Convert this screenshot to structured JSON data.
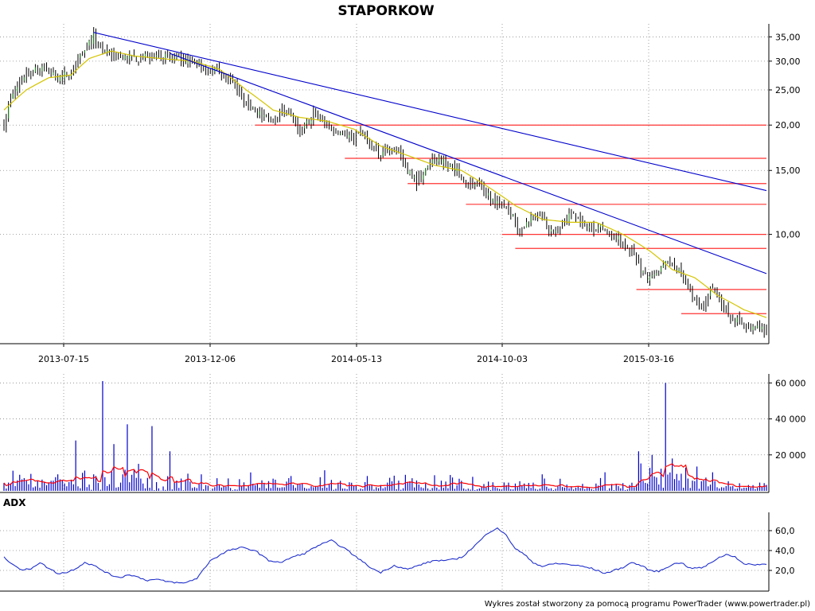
{
  "chart_data": {
    "type": "candlestick",
    "title": "STAPORKOW",
    "footer": "Wykres został stworzony za pomocą programu PowerTrader (www.powertrader.pl)",
    "colors": {
      "candle": "#000000",
      "ma": "#d4c400",
      "trend": "#0000cc",
      "support": "#ff3333",
      "volume": "#0000cc",
      "volume_ma": "#ff0000",
      "adx": "#2030cc",
      "grid": "#888888"
    },
    "x_axis": {
      "labels": [
        "2013-07-15",
        "2013-12-06",
        "2014-05-13",
        "2014-10-03",
        "2015-03-16"
      ]
    },
    "price": {
      "scale": "log",
      "ticks": [
        {
          "value": 35,
          "label": "35,00"
        },
        {
          "value": 30,
          "label": "30,00"
        },
        {
          "value": 25,
          "label": "25,00"
        },
        {
          "value": 20,
          "label": "20,00"
        },
        {
          "value": 15,
          "label": "15,00"
        },
        {
          "value": 10,
          "label": "10,00"
        }
      ],
      "close_keypoints": [
        [
          0,
          20
        ],
        [
          3,
          23.5
        ],
        [
          10,
          28
        ],
        [
          18,
          28.5
        ],
        [
          24,
          27
        ],
        [
          30,
          28
        ],
        [
          36,
          32
        ],
        [
          40,
          35
        ],
        [
          44,
          31.5
        ],
        [
          50,
          31
        ],
        [
          56,
          30.5
        ],
        [
          62,
          30.5
        ],
        [
          68,
          31.5
        ],
        [
          72,
          31
        ],
        [
          80,
          30
        ],
        [
          88,
          29.5
        ],
        [
          94,
          28.5
        ],
        [
          100,
          27
        ],
        [
          106,
          24
        ],
        [
          112,
          22
        ],
        [
          118,
          20.5
        ],
        [
          124,
          22
        ],
        [
          128,
          21
        ],
        [
          132,
          19
        ],
        [
          138,
          21.5
        ],
        [
          144,
          20
        ],
        [
          150,
          19
        ],
        [
          156,
          18.5
        ],
        [
          160,
          19
        ],
        [
          164,
          17.5
        ],
        [
          168,
          16.5
        ],
        [
          172,
          17.5
        ],
        [
          176,
          17
        ],
        [
          180,
          15
        ],
        [
          184,
          14
        ],
        [
          188,
          15
        ],
        [
          192,
          16
        ],
        [
          196,
          16
        ],
        [
          200,
          15.5
        ],
        [
          206,
          14
        ],
        [
          212,
          13.5
        ],
        [
          218,
          12.5
        ],
        [
          224,
          12
        ],
        [
          228,
          11
        ],
        [
          230,
          10
        ],
        [
          234,
          11
        ],
        [
          238,
          11.5
        ],
        [
          242,
          10.5
        ],
        [
          246,
          10
        ],
        [
          250,
          11
        ],
        [
          254,
          11.5
        ],
        [
          258,
          10.5
        ],
        [
          262,
          10.5
        ],
        [
          266,
          10.5
        ],
        [
          270,
          10
        ],
        [
          276,
          9.5
        ],
        [
          280,
          9
        ],
        [
          284,
          8
        ],
        [
          288,
          7.5
        ],
        [
          292,
          7.8
        ],
        [
          296,
          8.5
        ],
        [
          300,
          8
        ],
        [
          304,
          7.5
        ],
        [
          308,
          6.5
        ],
        [
          312,
          6.2
        ],
        [
          316,
          7.3
        ],
        [
          320,
          6.5
        ],
        [
          324,
          5.8
        ],
        [
          328,
          5.8
        ],
        [
          332,
          5.5
        ],
        [
          336,
          5.6
        ],
        [
          340,
          5.5
        ]
      ],
      "ma_keypoints": [
        [
          0,
          22
        ],
        [
          10,
          25
        ],
        [
          20,
          27
        ],
        [
          30,
          27.5
        ],
        [
          38,
          30.5
        ],
        [
          48,
          32
        ],
        [
          58,
          31
        ],
        [
          70,
          30.5
        ],
        [
          84,
          30
        ],
        [
          96,
          28.5
        ],
        [
          108,
          25
        ],
        [
          120,
          22
        ],
        [
          132,
          21
        ],
        [
          144,
          20.5
        ],
        [
          156,
          19.5
        ],
        [
          168,
          17.5
        ],
        [
          180,
          16.5
        ],
        [
          192,
          15.5
        ],
        [
          204,
          15
        ],
        [
          216,
          13.5
        ],
        [
          228,
          12
        ],
        [
          240,
          11
        ],
        [
          252,
          10.8
        ],
        [
          264,
          10.8
        ],
        [
          276,
          10
        ],
        [
          288,
          9
        ],
        [
          298,
          8
        ],
        [
          308,
          7.6
        ],
        [
          318,
          6.8
        ],
        [
          330,
          6.2
        ],
        [
          340,
          5.9
        ]
      ],
      "trendlines": [
        [
          [
            40,
            36
          ],
          [
            340,
            13.2
          ]
        ],
        [
          [
            74,
            31.5
          ],
          [
            340,
            7.8
          ]
        ]
      ],
      "supports": [
        [
          112,
          340,
          20
        ],
        [
          152,
          340,
          16.2
        ],
        [
          180,
          340,
          13.8
        ],
        [
          206,
          340,
          12.1
        ],
        [
          222,
          340,
          10
        ],
        [
          228,
          340,
          9.15
        ],
        [
          282,
          340,
          7.05
        ],
        [
          302,
          340,
          6.05
        ]
      ]
    },
    "volume": {
      "ticks": [
        {
          "value": 60000,
          "label": "60 000"
        },
        {
          "value": 40000,
          "label": "40 000"
        },
        {
          "value": 20000,
          "label": "20 000"
        }
      ],
      "spikes": [
        [
          32,
          28000
        ],
        [
          44,
          61000
        ],
        [
          49,
          26000
        ],
        [
          55,
          37000
        ],
        [
          66,
          36000
        ],
        [
          74,
          22000
        ],
        [
          295,
          60000
        ],
        [
          283,
          22000
        ],
        [
          289,
          20000
        ],
        [
          298,
          18000
        ]
      ]
    },
    "adx": {
      "label": "ADX",
      "ticks": [
        {
          "value": 60,
          "label": "60,0"
        },
        {
          "value": 40,
          "label": "40,0"
        },
        {
          "value": 20,
          "label": "20,0"
        }
      ],
      "keypoints": [
        [
          0,
          33
        ],
        [
          3,
          28
        ],
        [
          8,
          20
        ],
        [
          12,
          22
        ],
        [
          16,
          28
        ],
        [
          20,
          22
        ],
        [
          24,
          17
        ],
        [
          28,
          18
        ],
        [
          32,
          22
        ],
        [
          36,
          28
        ],
        [
          40,
          25
        ],
        [
          44,
          20
        ],
        [
          48,
          15
        ],
        [
          52,
          13
        ],
        [
          56,
          16
        ],
        [
          60,
          13
        ],
        [
          64,
          10
        ],
        [
          68,
          11
        ],
        [
          72,
          9
        ],
        [
          76,
          8
        ],
        [
          80,
          7
        ],
        [
          86,
          12
        ],
        [
          92,
          30
        ],
        [
          100,
          40
        ],
        [
          106,
          43
        ],
        [
          112,
          40
        ],
        [
          118,
          30
        ],
        [
          124,
          28
        ],
        [
          128,
          33
        ],
        [
          134,
          37
        ],
        [
          140,
          45
        ],
        [
          146,
          50
        ],
        [
          152,
          42
        ],
        [
          158,
          32
        ],
        [
          164,
          22
        ],
        [
          168,
          18
        ],
        [
          174,
          25
        ],
        [
          180,
          21
        ],
        [
          186,
          26
        ],
        [
          192,
          30
        ],
        [
          198,
          30
        ],
        [
          204,
          33
        ],
        [
          210,
          45
        ],
        [
          216,
          58
        ],
        [
          220,
          63
        ],
        [
          224,
          55
        ],
        [
          228,
          42
        ],
        [
          232,
          36
        ],
        [
          236,
          28
        ],
        [
          240,
          24
        ],
        [
          246,
          27
        ],
        [
          252,
          26
        ],
        [
          258,
          24
        ],
        [
          262,
          22
        ],
        [
          268,
          17
        ],
        [
          272,
          20
        ],
        [
          276,
          23
        ],
        [
          280,
          28
        ],
        [
          284,
          25
        ],
        [
          288,
          20
        ],
        [
          292,
          19
        ],
        [
          298,
          26
        ],
        [
          302,
          28
        ],
        [
          306,
          22
        ],
        [
          312,
          23
        ],
        [
          318,
          32
        ],
        [
          322,
          36
        ],
        [
          326,
          34
        ],
        [
          330,
          26
        ]
      ]
    },
    "seed": 7,
    "n_bars": 341
  }
}
